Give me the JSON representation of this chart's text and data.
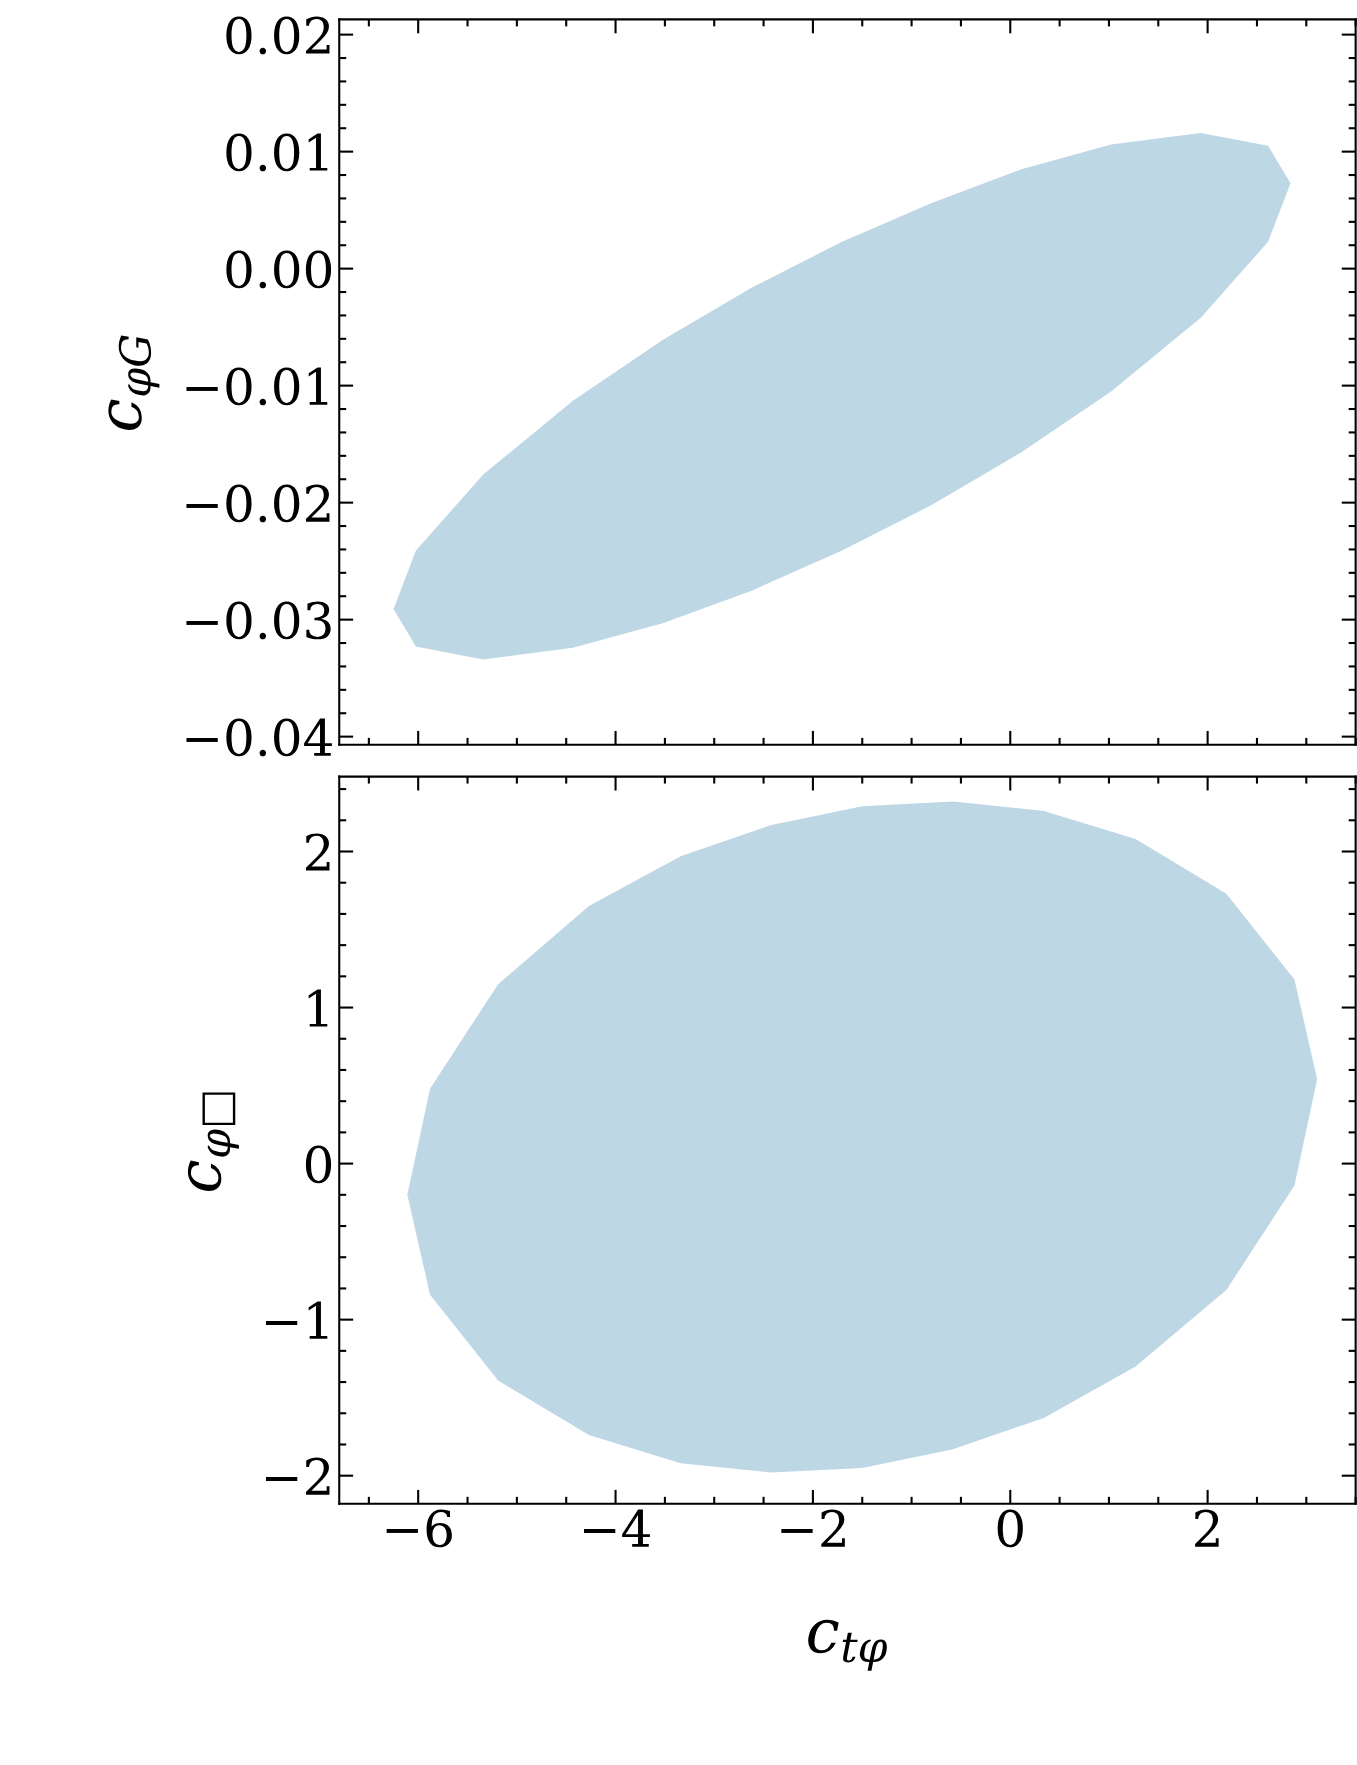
{
  "chart_data": [
    {
      "type": "area",
      "ylabel": "c$_{φG}$",
      "xlim": [
        -6.8,
        3.5
      ],
      "ylim": [
        -0.0407,
        0.0213
      ],
      "tick_labels": "y",
      "xticks": [
        -6,
        -4,
        -2,
        0,
        2
      ],
      "yticks": [
        {
          "value": 0.02,
          "label": "0.02"
        },
        {
          "value": 0.01,
          "label": "0.01"
        },
        {
          "value": 0,
          "label": "0.00"
        },
        {
          "value": -0.01,
          "label": "−0.01"
        },
        {
          "value": -0.02,
          "label": "−0.02"
        },
        {
          "value": -0.03,
          "label": "−0.03"
        },
        {
          "value": -0.04,
          "label": "−0.04"
        }
      ],
      "series": [
        {
          "color": "#bed7e5",
          "x": [
            -6.25,
            -6.023,
            -5.341,
            -4.432,
            -3.523,
            -2.614,
            -1.705,
            -0.796,
            0.113,
            1.022,
            1.931,
            2.613,
            2.84,
            2.613,
            1.931,
            1.022,
            0.113,
            -0.796,
            -1.705,
            -2.614,
            -3.523,
            -4.432,
            -5.341,
            -6.023
          ],
          "values": [
            -0.0291,
            -0.0241,
            -0.0176,
            -0.0113,
            -0.0061,
            -0.0016,
            0.0023,
            0.0056,
            0.0085,
            0.0106,
            0.0116,
            0.0105,
            0.0073,
            0.0023,
            -0.0042,
            -0.0105,
            -0.0157,
            -0.0202,
            -0.0241,
            -0.0275,
            -0.0303,
            -0.0324,
            -0.0334,
            -0.0323
          ]
        }
      ]
    },
    {
      "type": "area",
      "xlabel": "c$_{tφ}$",
      "ylabel": "c$_{φ□}$",
      "xlim": [
        -6.8,
        3.5
      ],
      "ylim": [
        -2.18,
        2.48
      ],
      "xticks": [
        {
          "value": -6,
          "label": "−6"
        },
        {
          "value": -4,
          "label": "−4"
        },
        {
          "value": -2,
          "label": "−2"
        },
        0,
        2
      ],
      "yticks": [
        2,
        1,
        0,
        {
          "value": -1,
          "label": "−1"
        },
        {
          "value": -2,
          "label": "−2"
        }
      ],
      "series": [
        {
          "color": "#bed7e5",
          "x": [
            -6.11,
            -5.88,
            -5.19,
            -4.27,
            -3.34,
            -2.42,
            -1.5,
            -0.58,
            0.34,
            1.27,
            2.19,
            2.88,
            3.11,
            2.88,
            2.19,
            1.27,
            0.34,
            -0.58,
            -1.5,
            -2.42,
            -3.34,
            -4.27,
            -5.19,
            -5.88
          ],
          "values": [
            -0.2,
            0.48,
            1.15,
            1.65,
            1.97,
            2.17,
            2.29,
            2.32,
            2.26,
            2.08,
            1.73,
            1.18,
            0.54,
            -0.14,
            -0.81,
            -1.3,
            -1.63,
            -1.83,
            -1.95,
            -1.98,
            -1.92,
            -1.74,
            -1.39,
            -0.84
          ]
        }
      ]
    }
  ]
}
